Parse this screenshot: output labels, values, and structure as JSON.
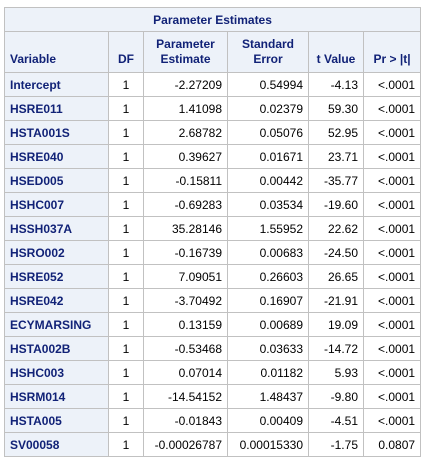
{
  "table": {
    "title": "Parameter Estimates",
    "headers": {
      "variable": "Variable",
      "df": "DF",
      "estimate_line1": "Parameter",
      "estimate_line2": "Estimate",
      "stderr_line1": "Standard",
      "stderr_line2": "Error",
      "tvalue": "t Value",
      "pvalue": "Pr > |t|"
    },
    "rows": [
      {
        "variable": "Intercept",
        "df": "1",
        "estimate": "-2.27209",
        "stderr": "0.54994",
        "t": "-4.13",
        "p": "<.0001"
      },
      {
        "variable": "HSRE011",
        "df": "1",
        "estimate": "1.41098",
        "stderr": "0.02379",
        "t": "59.30",
        "p": "<.0001"
      },
      {
        "variable": "HSTA001S",
        "df": "1",
        "estimate": "2.68782",
        "stderr": "0.05076",
        "t": "52.95",
        "p": "<.0001"
      },
      {
        "variable": "HSRE040",
        "df": "1",
        "estimate": "0.39627",
        "stderr": "0.01671",
        "t": "23.71",
        "p": "<.0001"
      },
      {
        "variable": "HSED005",
        "df": "1",
        "estimate": "-0.15811",
        "stderr": "0.00442",
        "t": "-35.77",
        "p": "<.0001"
      },
      {
        "variable": "HSHC007",
        "df": "1",
        "estimate": "-0.69283",
        "stderr": "0.03534",
        "t": "-19.60",
        "p": "<.0001"
      },
      {
        "variable": "HSSH037A",
        "df": "1",
        "estimate": "35.28146",
        "stderr": "1.55952",
        "t": "22.62",
        "p": "<.0001"
      },
      {
        "variable": "HSRO002",
        "df": "1",
        "estimate": "-0.16739",
        "stderr": "0.00683",
        "t": "-24.50",
        "p": "<.0001"
      },
      {
        "variable": "HSRE052",
        "df": "1",
        "estimate": "7.09051",
        "stderr": "0.26603",
        "t": "26.65",
        "p": "<.0001"
      },
      {
        "variable": "HSRE042",
        "df": "1",
        "estimate": "-3.70492",
        "stderr": "0.16907",
        "t": "-21.91",
        "p": "<.0001"
      },
      {
        "variable": "ECYMARSING",
        "df": "1",
        "estimate": "0.13159",
        "stderr": "0.00689",
        "t": "19.09",
        "p": "<.0001"
      },
      {
        "variable": "HSTA002B",
        "df": "1",
        "estimate": "-0.53468",
        "stderr": "0.03633",
        "t": "-14.72",
        "p": "<.0001"
      },
      {
        "variable": "HSHC003",
        "df": "1",
        "estimate": "0.07014",
        "stderr": "0.01182",
        "t": "5.93",
        "p": "<.0001"
      },
      {
        "variable": "HSRM014",
        "df": "1",
        "estimate": "-14.54152",
        "stderr": "1.48437",
        "t": "-9.80",
        "p": "<.0001"
      },
      {
        "variable": "HSTA005",
        "df": "1",
        "estimate": "-0.01843",
        "stderr": "0.00409",
        "t": "-4.51",
        "p": "<.0001"
      },
      {
        "variable": "SV00058",
        "df": "1",
        "estimate": "-0.00026787",
        "stderr": "0.00015330",
        "t": "-1.75",
        "p": "0.0807"
      }
    ]
  },
  "colors": {
    "header_background": "#edf2f9",
    "header_text": "#112277",
    "border": "#c1c1c1"
  }
}
